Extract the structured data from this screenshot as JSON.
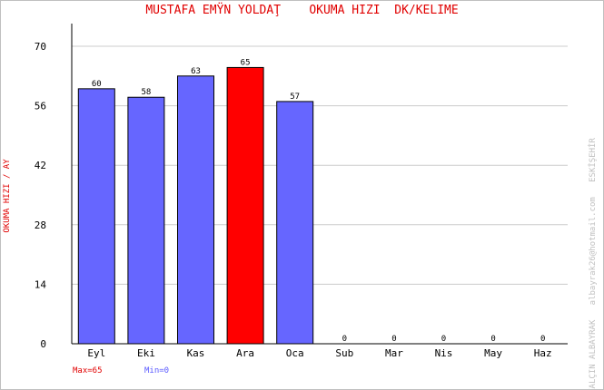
{
  "chart_data": {
    "type": "bar",
    "title": "MUSTAFA EMŸN YOLDAŢ    OKUMA HIZI  DK/KELIME",
    "ylabel": "OKUMA HIZI / AY",
    "xlabel": "",
    "categories": [
      "Eyl",
      "Eki",
      "Kas",
      "Ara",
      "Oca",
      "Sub",
      "Mar",
      "Nis",
      "May",
      "Haz"
    ],
    "values": [
      60,
      58,
      63,
      65,
      57,
      0,
      0,
      0,
      0,
      0
    ],
    "ylim": [
      0,
      70
    ],
    "yticks": [
      0,
      14,
      28,
      42,
      56,
      70
    ],
    "grid": true,
    "highlight_index": 3,
    "colors": {
      "bar": "#6666ff",
      "highlight": "#ff0000",
      "title": "#e00000",
      "grid": "#cccccc"
    }
  },
  "footer": {
    "max_label": "Max=65",
    "min_label": "Min=0"
  },
  "credit": "YALÇIN ALBAYRAK   albayrak26@hotmail.com   ESKİŞEHİR"
}
